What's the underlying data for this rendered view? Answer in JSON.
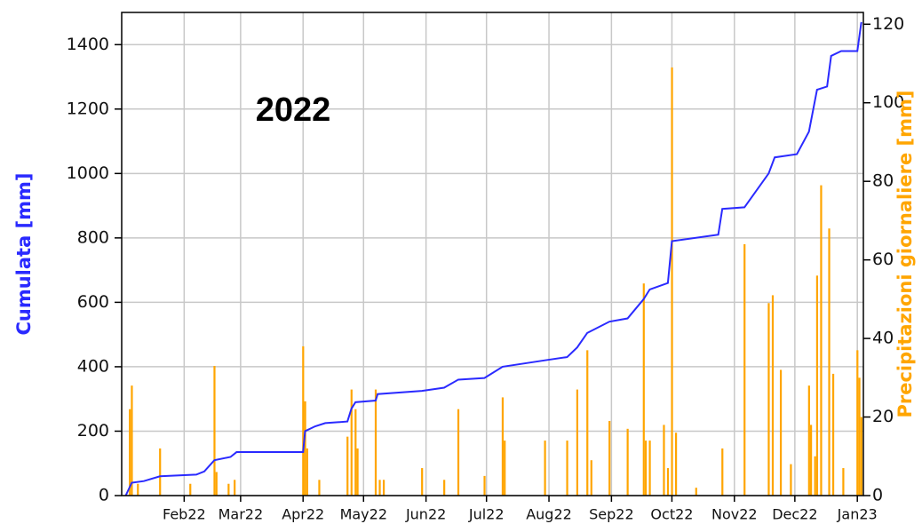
{
  "chart_data": {
    "type": "line-bar",
    "annotation": "2022",
    "ylabel": "Cumulata [mm]",
    "y2label": "Precipitazioni giornaliere [mm]",
    "xlim": [
      1,
      369
    ],
    "xticks": [
      {
        "value": 32,
        "label": "Feb22"
      },
      {
        "value": 60,
        "label": "Mar22"
      },
      {
        "value": 91,
        "label": "Apr22"
      },
      {
        "value": 121,
        "label": "May22"
      },
      {
        "value": 152,
        "label": "Jun22"
      },
      {
        "value": 182,
        "label": "Jul22"
      },
      {
        "value": 213,
        "label": "Aug22"
      },
      {
        "value": 244,
        "label": "Sep22"
      },
      {
        "value": 274,
        "label": "Oct22"
      },
      {
        "value": 305,
        "label": "Nov22"
      },
      {
        "value": 335,
        "label": "Dec22"
      },
      {
        "value": 366,
        "label": "Jan23"
      }
    ],
    "ylim": [
      0,
      1500
    ],
    "yticks": [
      0,
      200,
      400,
      600,
      800,
      1000,
      1200,
      1400
    ],
    "y2lim": [
      0,
      123
    ],
    "y2ticks": [
      0,
      20,
      40,
      60,
      80,
      100,
      120
    ],
    "grid": true,
    "series": [
      {
        "type": "line",
        "color": "#2a2aff",
        "x": [
          3,
          6,
          12,
          20,
          38,
          42,
          47,
          55,
          58,
          91,
          92,
          97,
          102,
          113,
          115,
          117,
          127,
          128,
          150,
          161,
          168,
          181,
          190,
          211,
          222,
          227,
          232,
          243,
          252,
          260,
          263,
          272,
          274,
          297,
          299,
          310,
          322,
          325,
          336,
          342,
          346,
          351,
          353,
          358,
          366,
          368
        ],
        "values": [
          0,
          40,
          45,
          60,
          65,
          75,
          110,
          120,
          135,
          135,
          200,
          215,
          225,
          230,
          270,
          290,
          295,
          315,
          325,
          335,
          360,
          365,
          400,
          420,
          430,
          460,
          505,
          540,
          550,
          610,
          640,
          660,
          790,
          810,
          890,
          895,
          1000,
          1050,
          1060,
          1130,
          1260,
          1270,
          1365,
          1380,
          1380,
          1470
        ]
      },
      {
        "type": "bar",
        "axis": "y2",
        "color": "#ffa500",
        "x": [
          5,
          6,
          9,
          20,
          35,
          47,
          48,
          54,
          57,
          91,
          92,
          93,
          99,
          113,
          115,
          117,
          118,
          127,
          129,
          131,
          150,
          161,
          168,
          181,
          190,
          191,
          211,
          222,
          227,
          232,
          234,
          243,
          252,
          260,
          261,
          263,
          270,
          272,
          274,
          276,
          286,
          299,
          310,
          322,
          324,
          328,
          333,
          342,
          343,
          345,
          346,
          348,
          352,
          354,
          359,
          366,
          367,
          368
        ],
        "values": [
          22,
          28,
          3,
          12,
          3,
          33,
          6,
          3,
          4,
          38,
          24,
          12,
          4,
          15,
          27,
          22,
          12,
          27,
          4,
          4,
          7,
          4,
          22,
          5,
          25,
          14,
          14,
          14,
          27,
          37,
          9,
          19,
          17,
          54,
          14,
          14,
          18,
          7,
          109,
          16,
          2,
          12,
          64,
          49,
          51,
          32,
          8,
          28,
          18,
          10,
          56,
          79,
          68,
          31,
          7,
          37,
          30,
          20
        ]
      }
    ]
  }
}
